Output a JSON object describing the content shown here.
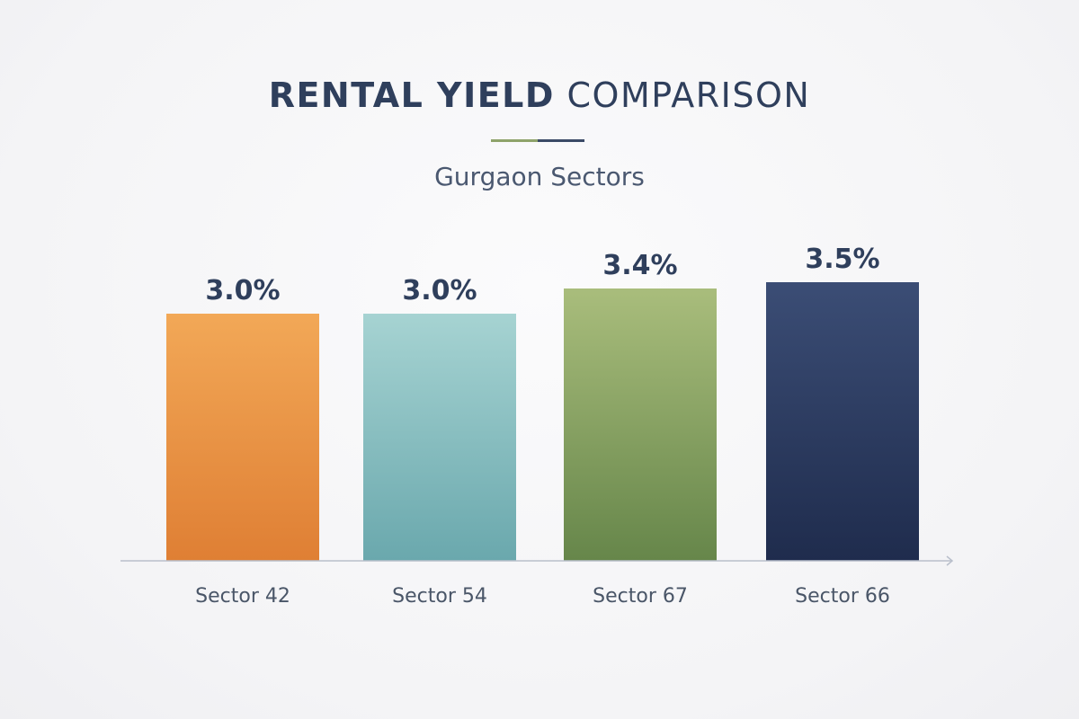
{
  "header": {
    "title_bold": "RENTAL YIELD",
    "title_light": "COMPARISON",
    "subtitle": "Gurgaon Sectors"
  },
  "chart_data": {
    "type": "bar",
    "title": "RENTAL YIELD COMPARISON",
    "subtitle": "Gurgaon Sectors",
    "categories": [
      "Sector 42",
      "Sector 54",
      "Sector 67",
      "Sector 66"
    ],
    "values": [
      3.0,
      3.0,
      3.4,
      3.5
    ],
    "value_labels": [
      "3.0%",
      "3.0%",
      "3.4%",
      "3.5%"
    ],
    "unit": "%",
    "xlabel": "",
    "ylabel": "",
    "grid": false,
    "legend": "none",
    "bar_colors": [
      [
        "#f2a857",
        "#df7f34"
      ],
      [
        "#a6d3d2",
        "#6aa8ad"
      ],
      [
        "#a9bd7c",
        "#66864a"
      ],
      [
        "#3b4d75",
        "#1f2c4d"
      ]
    ],
    "axis_color": "#b9bfcb"
  }
}
